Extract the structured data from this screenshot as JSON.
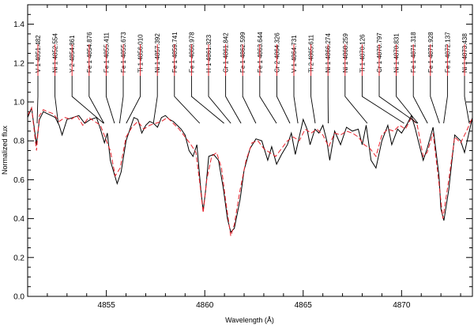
{
  "chart_data": {
    "type": "line",
    "title": "",
    "xlabel": "Wavelength (Å)",
    "ylabel": "Normalized flux",
    "xlim": [
      4851.0,
      4873.6
    ],
    "ylim": [
      0.0,
      1.5
    ],
    "xticks": [
      4855,
      4860,
      4865,
      4870
    ],
    "yticks": [
      0.0,
      0.2,
      0.4,
      0.6,
      0.8,
      1.0,
      1.2,
      1.4
    ],
    "yticklabels": [
      "0.0",
      "0.2",
      "0.4",
      "0.6",
      "0.8",
      "1.0",
      "1.2",
      "1.4"
    ],
    "grid": false,
    "colors": {
      "observed": "#000000",
      "synthetic": "#e8202a",
      "marker": "#e8202a"
    },
    "series": [
      {
        "key": "observed",
        "style": "solid",
        "x": [
          4851.0,
          4851.2,
          4851.45,
          4851.6,
          4851.8,
          4852.0,
          4852.2,
          4852.4,
          4852.6,
          4852.75,
          4853.0,
          4853.3,
          4853.6,
          4853.9,
          4854.2,
          4854.5,
          4854.7,
          4854.9,
          4855.05,
          4855.2,
          4855.4,
          4855.55,
          4855.75,
          4856.0,
          4856.2,
          4856.4,
          4856.6,
          4856.8,
          4857.0,
          4857.2,
          4857.4,
          4857.6,
          4857.8,
          4858.0,
          4858.2,
          4858.4,
          4858.6,
          4858.8,
          4859.0,
          4859.2,
          4859.4,
          4859.6,
          4859.8,
          4859.92,
          4860.05,
          4860.2,
          4860.45,
          4860.7,
          4860.95,
          4861.15,
          4861.32,
          4861.5,
          4861.8,
          4862.0,
          4862.3,
          4862.6,
          4862.9,
          4863.2,
          4863.4,
          4863.65,
          4863.9,
          4864.2,
          4864.4,
          4864.6,
          4864.8,
          4865.0,
          4865.2,
          4865.35,
          4865.6,
          4865.8,
          4866.0,
          4866.2,
          4866.35,
          4866.6,
          4866.9,
          4867.2,
          4867.5,
          4867.8,
          4868.0,
          4868.2,
          4868.45,
          4868.7,
          4869.0,
          4869.3,
          4869.5,
          4869.8,
          4870.0,
          4870.3,
          4870.5,
          4870.7,
          4870.9,
          4871.1,
          4871.3,
          4871.6,
          4871.9,
          4872.0,
          4872.15,
          4872.4,
          4872.7,
          4873.0,
          4873.2,
          4873.4,
          4873.6
        ],
        "y": [
          0.92,
          0.97,
          0.78,
          0.91,
          0.95,
          0.94,
          0.93,
          0.92,
          0.88,
          0.83,
          0.91,
          0.92,
          0.93,
          0.89,
          0.91,
          0.92,
          0.86,
          0.79,
          0.84,
          0.7,
          0.63,
          0.58,
          0.64,
          0.8,
          0.86,
          0.92,
          0.91,
          0.84,
          0.88,
          0.9,
          0.89,
          0.87,
          0.92,
          0.93,
          0.91,
          0.9,
          0.88,
          0.86,
          0.83,
          0.75,
          0.72,
          0.78,
          0.55,
          0.44,
          0.55,
          0.72,
          0.73,
          0.7,
          0.55,
          0.4,
          0.33,
          0.35,
          0.5,
          0.65,
          0.76,
          0.81,
          0.8,
          0.7,
          0.77,
          0.68,
          0.73,
          0.78,
          0.84,
          0.73,
          0.82,
          0.91,
          0.86,
          0.78,
          0.86,
          0.84,
          0.88,
          0.8,
          0.7,
          0.85,
          0.78,
          0.87,
          0.85,
          0.86,
          0.78,
          0.88,
          0.7,
          0.66,
          0.8,
          0.88,
          0.78,
          0.86,
          0.84,
          0.89,
          0.93,
          0.86,
          0.78,
          0.7,
          0.76,
          0.87,
          0.62,
          0.45,
          0.39,
          0.55,
          0.83,
          0.8,
          0.74,
          0.83,
          0.92
        ]
      },
      {
        "key": "synthetic",
        "style": "dashed",
        "x": [
          4851.0,
          4851.2,
          4851.45,
          4851.6,
          4851.8,
          4852.0,
          4852.3,
          4852.6,
          4852.9,
          4853.2,
          4853.5,
          4853.8,
          4854.1,
          4854.4,
          4854.7,
          4855.0,
          4855.2,
          4855.45,
          4855.7,
          4856.0,
          4856.3,
          4856.6,
          4856.9,
          4857.2,
          4857.5,
          4857.8,
          4858.1,
          4858.4,
          4858.7,
          4859.0,
          4859.3,
          4859.55,
          4859.75,
          4859.92,
          4860.1,
          4860.35,
          4860.6,
          4860.85,
          4861.05,
          4861.25,
          4861.32,
          4861.5,
          4861.8,
          4862.1,
          4862.4,
          4862.7,
          4863.0,
          4863.3,
          4863.6,
          4863.9,
          4864.2,
          4864.5,
          4864.8,
          4865.1,
          4865.4,
          4865.7,
          4866.0,
          4866.3,
          4866.6,
          4866.9,
          4867.2,
          4867.5,
          4867.8,
          4868.1,
          4868.4,
          4868.7,
          4869.0,
          4869.3,
          4869.6,
          4869.9,
          4870.2,
          4870.5,
          4870.8,
          4871.1,
          4871.3,
          4871.6,
          4871.9,
          4872.1,
          4872.4,
          4872.7,
          4873.0,
          4873.3,
          4873.6
        ],
        "y": [
          0.93,
          0.97,
          0.75,
          0.93,
          0.96,
          0.95,
          0.94,
          0.9,
          0.92,
          0.91,
          0.93,
          0.88,
          0.92,
          0.9,
          0.88,
          0.8,
          0.75,
          0.62,
          0.66,
          0.82,
          0.87,
          0.9,
          0.86,
          0.88,
          0.89,
          0.9,
          0.92,
          0.89,
          0.86,
          0.82,
          0.78,
          0.74,
          0.58,
          0.43,
          0.6,
          0.72,
          0.74,
          0.66,
          0.5,
          0.36,
          0.31,
          0.37,
          0.55,
          0.7,
          0.79,
          0.8,
          0.76,
          0.74,
          0.72,
          0.76,
          0.8,
          0.82,
          0.8,
          0.86,
          0.84,
          0.86,
          0.83,
          0.77,
          0.84,
          0.83,
          0.85,
          0.84,
          0.82,
          0.78,
          0.76,
          0.72,
          0.83,
          0.86,
          0.85,
          0.88,
          0.86,
          0.92,
          0.88,
          0.72,
          0.74,
          0.84,
          0.58,
          0.4,
          0.6,
          0.82,
          0.79,
          0.85,
          0.92
        ]
      }
    ],
    "lines": [
      {
        "label": "V 1 4851.482",
        "wl": 4851.482
      },
      {
        "label": "Ni 1 4852.554",
        "wl": 4852.554
      },
      {
        "label": "Y 2 4854.861",
        "wl": 4854.861
      },
      {
        "label": "Fe 1 4854.876",
        "wl": 4854.876
      },
      {
        "label": "Fe 1 4855.411",
        "wl": 4855.411
      },
      {
        "label": "Fe 1 4855.673",
        "wl": 4855.673
      },
      {
        "label": "Ti 1 4856.010",
        "wl": 4856.01
      },
      {
        "label": "Ni 1 4857.392",
        "wl": 4857.392
      },
      {
        "label": "Fe 1 4859.741",
        "wl": 4859.741
      },
      {
        "label": "Fe 1 4860.978",
        "wl": 4860.978
      },
      {
        "label": "H 1 4861.323",
        "wl": 4861.323
      },
      {
        "label": "Cr 1 4861.842",
        "wl": 4861.842
      },
      {
        "label": "Fe 1 4862.599",
        "wl": 4862.599
      },
      {
        "label": "Fe 1 4863.644",
        "wl": 4863.644
      },
      {
        "label": "Cr 2 4864.326",
        "wl": 4864.326
      },
      {
        "label": "V 1 4864.731",
        "wl": 4864.731
      },
      {
        "label": "Ti 2 4865.611",
        "wl": 4865.611
      },
      {
        "label": "Ni 1 4866.274",
        "wl": 4866.274
      },
      {
        "label": "Ni 1 4868.259",
        "wl": 4868.259
      },
      {
        "label": "Ti 1 4870.126",
        "wl": 4870.126
      },
      {
        "label": "Cr 1 4870.797",
        "wl": 4870.797
      },
      {
        "label": "Ni 1 4870.831",
        "wl": 4870.831
      },
      {
        "label": "Fe 1 4871.318",
        "wl": 4871.318
      },
      {
        "label": "Fe 1 4871.928",
        "wl": 4871.928
      },
      {
        "label": "Fe 1 4872.137",
        "wl": 4872.137
      },
      {
        "label": "Ni 1 4873.438",
        "wl": 4873.438
      }
    ]
  }
}
